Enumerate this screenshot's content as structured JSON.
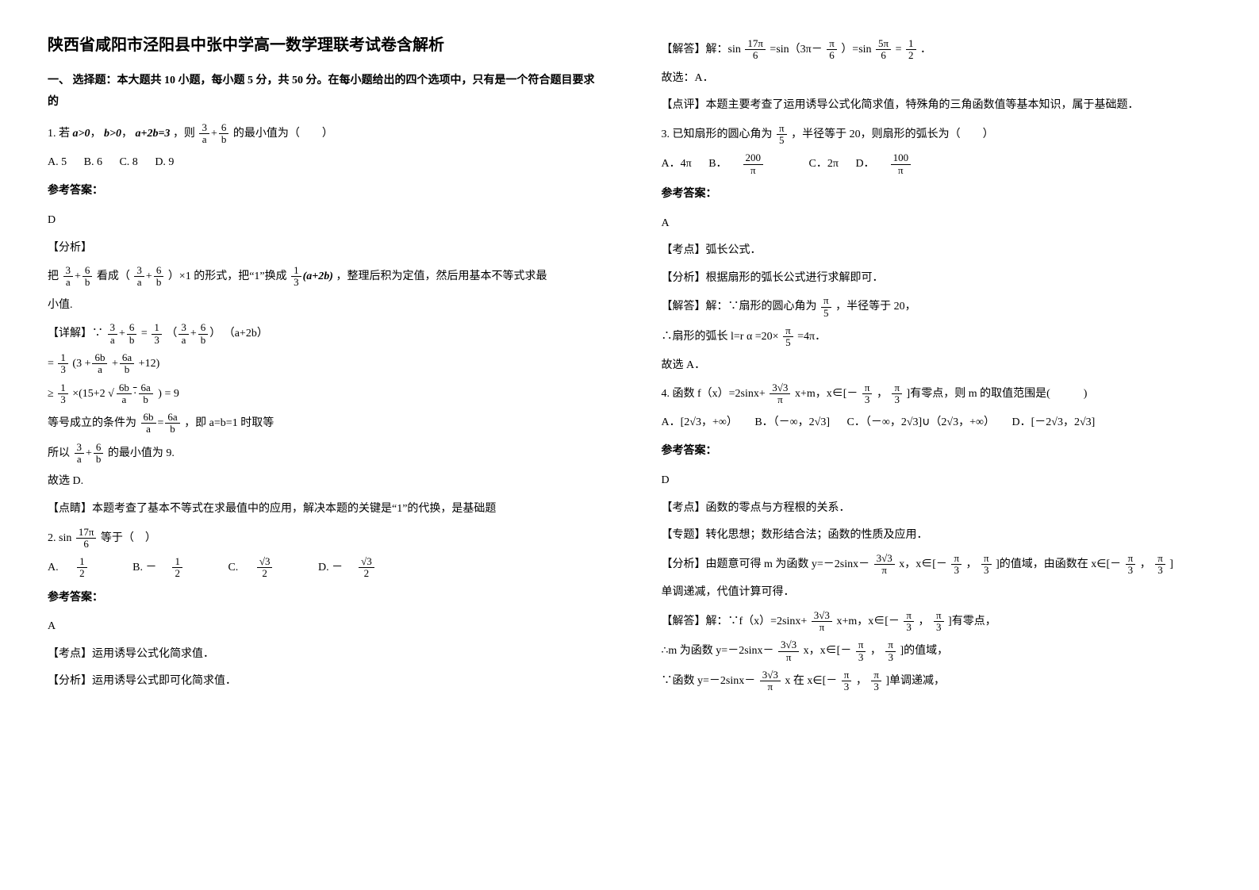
{
  "title": "陕西省咸阳市泾阳县中张中学高一数学理联考试卷含解析",
  "instructions": "一、 选择题：本大题共 10 小题，每小题 5 分，共 50 分。在每小题给出的四个选项中，只有是一个符合题目要求的",
  "q1": {
    "stem_pre": "1. 若",
    "conds": [
      "a>0",
      "b>0",
      "a+2b=3"
    ],
    "stem_mid": "，则",
    "expr_num": [
      "3",
      "6"
    ],
    "expr_den": [
      "a",
      "b"
    ],
    "stem_post": "的最小值为（　　）",
    "opts": [
      "A. 5",
      "B. 6",
      "C. 8",
      "D. 9"
    ],
    "ans_label": "参考答案：",
    "ans": "D",
    "analysis_label": "【分析】",
    "analysis_pre": "把",
    "analysis_mid1": "看成（",
    "analysis_mid2": "）×1 的形式，把“1”换成",
    "one_over_3": {
      "num": "1",
      "den": "3"
    },
    "a2b": "(a+2b)",
    "analysis_post": "，整理后积为定值，然后用基本不等式求最",
    "analysis_post2": "小值.",
    "detail_label": "【详解】∵",
    "step1_suffix": "（a+2b）",
    "step2_pre": "=",
    "step2_mid": "(3",
    "six_b_a": {
      "num": "6b",
      "den": "a"
    },
    "six_a_b": {
      "num": "6a",
      "den": "b"
    },
    "step2_post": "12)",
    "step3_pre": "≥",
    "step3_mid": "×(15+2",
    "step3_r": ") =",
    "step3_post": "9",
    "eqcond_pre": "等号成立的条件为",
    "six_b_over_a": {
      "num": "6b",
      "den": "a"
    },
    "six_a_over_b": {
      "num": "6a",
      "den": "b"
    },
    "eqcond_post": "，即 a=b=1 时取等",
    "so_pre": "所以",
    "so_post": "的最小值为 9.",
    "so_choose": "故选 D.",
    "note_label": "【点睛】本题考查了基本不等式在求最值中的应用，解决本题的关键是“1”的代换，是基础题"
  },
  "q2": {
    "stem_pre": "2. sin",
    "frac": {
      "num": "17π",
      "den": "6"
    },
    "stem_post": " 等于（　）",
    "optA_pre": "A. ",
    "optA": {
      "num": "1",
      "den": "2"
    },
    "optB_pre": "B. －",
    "optB": {
      "num": "1",
      "den": "2"
    },
    "optC_pre": "C. ",
    "optC": {
      "num": "√3",
      "den": "2"
    },
    "optD_pre": "D. －",
    "optD": {
      "num": "√3",
      "den": "2"
    },
    "ans_label": "参考答案：",
    "ans": "A",
    "kp": "【考点】运用诱导公式化简求值．",
    "fx": "【分析】运用诱导公式即可化简求值．",
    "sol_pre": "【解答】解：sin",
    "sol_f1": {
      "num": "17π",
      "den": "6"
    },
    "sol_mid1": " =sin（3π－",
    "sol_f2": {
      "num": "π",
      "den": "6"
    },
    "sol_mid2": "）=sin",
    "sol_f3": {
      "num": "5π",
      "den": "6"
    },
    "sol_eq": " =",
    "sol_f4": {
      "num": "1",
      "den": "2"
    },
    "sol_end": "．",
    "sel": "故选：A．",
    "review": "【点评】本题主要考查了运用诱导公式化简求值，特殊角的三角函数值等基本知识，属于基础题．"
  },
  "q3": {
    "stem_pre": "3. 已知扇形的圆心角为",
    "frac": {
      "num": "π",
      "den": "5"
    },
    "stem_post": "，半径等于 20，则扇形的弧长为（　　）",
    "optA": "A．4π",
    "optB_pre": "B．",
    "optB": {
      "num": "200",
      "den": "π"
    },
    "optC": "C．2π",
    "optD_pre": "D．",
    "optD": {
      "num": "100",
      "den": "π"
    },
    "ans_label": "参考答案：",
    "ans": "A",
    "kp": "【考点】弧长公式．",
    "fx": "【分析】根据扇形的弧长公式进行求解即可．",
    "sol1_pre": "【解答】解：∵扇形的圆心角为",
    "sol1_post": "，半径等于 20，",
    "sol2_pre": "∴扇形的弧长 l=r α =20×",
    "sol2_post": " =4π．",
    "sel": "故选 A．"
  },
  "q4": {
    "stem_pre": "4. 函数 f（x）=2sinx+",
    "coef": {
      "num": "3√3",
      "den": "π"
    },
    "stem_mid": "x+m，x∈[－",
    "rng1": {
      "num": "π",
      "den": "3"
    },
    "rng_sep": "，",
    "rng2": {
      "num": "π",
      "den": "3"
    },
    "stem_post": "]有零点，则 m 的取值范围是(　　　)",
    "optA": "A．[2√3，+∞）",
    "optB": "B．（－∞，2√3]",
    "optC": "C．（－∞，2√3]∪（2√3，+∞）",
    "optD": "D．[－2√3，2√3]",
    "ans_label": "参考答案：",
    "ans": "D",
    "kp": "【考点】函数的零点与方程根的关系．",
    "zt": "【专题】转化思想；数形结合法；函数的性质及应用．",
    "fx_pre": "【分析】由题意可得 m 为函数 y=－2sinx－",
    "fx_mid": "x，x∈[－",
    "fx_post": "]的值域，由函数在 x∈[－",
    "fx_post2": "]",
    "mono": "单调递减，代值计算可得．",
    "sol_pre": "【解答】解：∵f（x）=2sinx+",
    "sol_mid": "x+m，x∈[－",
    "sol_post": "]有零点，",
    "m_pre": "∴m 为函数 y=－2sinx－",
    "m_mid": "x，x∈[－",
    "m_post": "]的值域，",
    "dec_pre": "∵函数 y=－2sinx－",
    "dec_mid": "x 在 x∈[－",
    "dec_post": "]单调递减，"
  }
}
